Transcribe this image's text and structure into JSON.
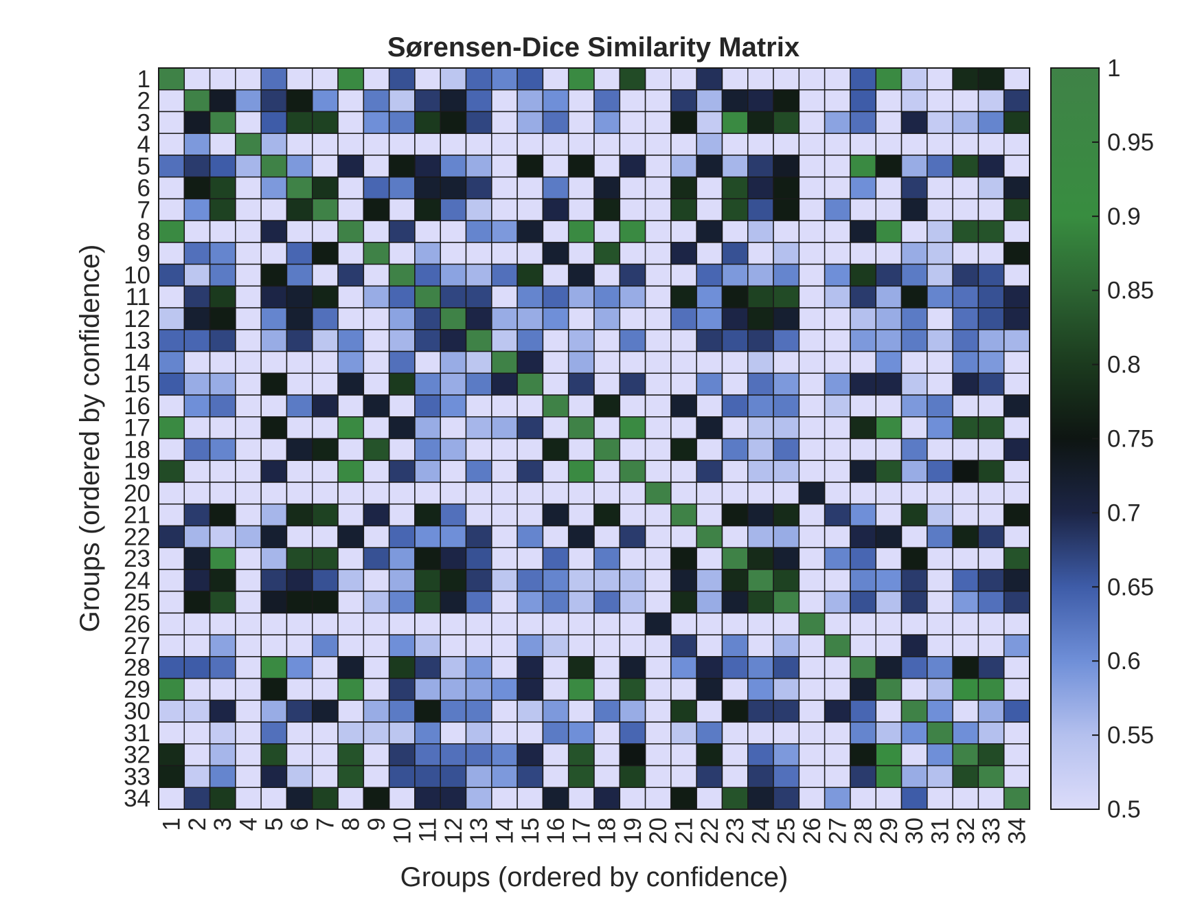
{
  "chart_data": {
    "type": "heatmap",
    "title": "Sørensen-Dice Similarity Matrix",
    "xlabel": "Groups (ordered by confidence)",
    "ylabel": "Groups (ordered by confidence)",
    "x_categories": [
      "1",
      "2",
      "3",
      "4",
      "5",
      "6",
      "7",
      "8",
      "9",
      "10",
      "11",
      "12",
      "13",
      "14",
      "15",
      "16",
      "17",
      "18",
      "19",
      "20",
      "21",
      "22",
      "23",
      "24",
      "25",
      "26",
      "27",
      "28",
      "29",
      "30",
      "31",
      "32",
      "33",
      "34"
    ],
    "y_categories": [
      "1",
      "2",
      "3",
      "4",
      "5",
      "6",
      "7",
      "8",
      "9",
      "10",
      "11",
      "12",
      "13",
      "14",
      "15",
      "16",
      "17",
      "18",
      "19",
      "20",
      "21",
      "22",
      "23",
      "24",
      "25",
      "26",
      "27",
      "28",
      "29",
      "30",
      "31",
      "32",
      "33",
      "34"
    ],
    "color_range": [
      0.5,
      1
    ],
    "colorbar_ticks": [
      "0.5",
      "0.55",
      "0.6",
      "0.65",
      "0.7",
      "0.75",
      "0.8",
      "0.85",
      "0.9",
      "0.95",
      "1"
    ],
    "colormap": [
      [
        0.5,
        "#dcdcfa"
      ],
      [
        0.55,
        "#b4c0ee"
      ],
      [
        0.6,
        "#6f8fd8"
      ],
      [
        0.65,
        "#3e5ca8"
      ],
      [
        0.7,
        "#1c2546"
      ],
      [
        0.75,
        "#0e1512"
      ],
      [
        0.8,
        "#1b3a1e"
      ],
      [
        0.85,
        "#2c6432"
      ],
      [
        0.9,
        "#388d40"
      ],
      [
        1.0,
        "#3f8247"
      ]
    ],
    "grid_color": "#1a1a1a",
    "values": [
      [
        1.0,
        0.5,
        0.5,
        0.5,
        0.63,
        0.5,
        0.5,
        0.93,
        0.5,
        0.66,
        0.5,
        0.54,
        0.64,
        0.61,
        0.65,
        0.5,
        0.93,
        0.5,
        0.82,
        0.5,
        0.5,
        0.69,
        0.5,
        0.5,
        0.5,
        0.5,
        0.5,
        0.65,
        0.93,
        0.53,
        0.5,
        0.78,
        0.77,
        0.5
      ],
      [
        0.5,
        1.0,
        0.73,
        0.59,
        0.68,
        0.76,
        0.6,
        0.5,
        0.62,
        0.54,
        0.68,
        0.72,
        0.64,
        0.5,
        0.57,
        0.6,
        0.5,
        0.63,
        0.5,
        0.5,
        0.68,
        0.56,
        0.72,
        0.7,
        0.76,
        0.5,
        0.5,
        0.65,
        0.5,
        0.53,
        0.5,
        0.5,
        0.53,
        0.68
      ],
      [
        0.5,
        0.73,
        1.0,
        0.5,
        0.65,
        0.81,
        0.81,
        0.5,
        0.6,
        0.62,
        0.8,
        0.76,
        0.67,
        0.5,
        0.57,
        0.63,
        0.5,
        0.59,
        0.5,
        0.5,
        0.76,
        0.53,
        0.93,
        0.77,
        0.82,
        0.5,
        0.58,
        0.63,
        0.5,
        0.7,
        0.53,
        0.56,
        0.61,
        0.8
      ],
      [
        0.5,
        0.59,
        0.5,
        1.0,
        0.56,
        0.5,
        0.5,
        0.5,
        0.5,
        0.5,
        0.5,
        0.5,
        0.5,
        0.5,
        0.5,
        0.5,
        0.5,
        0.5,
        0.5,
        0.5,
        0.5,
        0.56,
        0.5,
        0.5,
        0.5,
        0.5,
        0.5,
        0.5,
        0.5,
        0.5,
        0.5,
        0.5,
        0.5,
        0.5
      ],
      [
        0.63,
        0.68,
        0.65,
        0.56,
        1.0,
        0.59,
        0.5,
        0.7,
        0.5,
        0.76,
        0.7,
        0.61,
        0.57,
        0.5,
        0.76,
        0.5,
        0.76,
        0.5,
        0.7,
        0.5,
        0.56,
        0.72,
        0.56,
        0.68,
        0.73,
        0.5,
        0.5,
        0.93,
        0.76,
        0.57,
        0.63,
        0.82,
        0.7,
        0.5
      ],
      [
        0.5,
        0.76,
        0.81,
        0.5,
        0.59,
        1.0,
        0.79,
        0.5,
        0.64,
        0.62,
        0.72,
        0.72,
        0.68,
        0.5,
        0.5,
        0.62,
        0.5,
        0.72,
        0.5,
        0.5,
        0.78,
        0.5,
        0.82,
        0.7,
        0.76,
        0.5,
        0.5,
        0.6,
        0.5,
        0.68,
        0.5,
        0.5,
        0.54,
        0.72
      ],
      [
        0.5,
        0.6,
        0.81,
        0.5,
        0.5,
        0.79,
        1.0,
        0.5,
        0.76,
        0.5,
        0.77,
        0.63,
        0.54,
        0.5,
        0.5,
        0.7,
        0.5,
        0.77,
        0.5,
        0.5,
        0.81,
        0.5,
        0.82,
        0.66,
        0.76,
        0.5,
        0.61,
        0.5,
        0.5,
        0.72,
        0.5,
        0.5,
        0.5,
        0.81
      ],
      [
        0.93,
        0.5,
        0.5,
        0.5,
        0.7,
        0.5,
        0.5,
        1.0,
        0.5,
        0.68,
        0.5,
        0.5,
        0.61,
        0.59,
        0.72,
        0.5,
        0.93,
        0.5,
        0.93,
        0.5,
        0.5,
        0.72,
        0.5,
        0.55,
        0.5,
        0.5,
        0.5,
        0.72,
        0.93,
        0.5,
        0.54,
        0.83,
        0.83,
        0.5
      ],
      [
        0.5,
        0.63,
        0.61,
        0.5,
        0.5,
        0.64,
        0.76,
        0.5,
        1.0,
        0.5,
        0.57,
        0.5,
        0.5,
        0.5,
        0.5,
        0.72,
        0.5,
        0.83,
        0.5,
        0.5,
        0.7,
        0.5,
        0.66,
        0.5,
        0.55,
        0.5,
        0.5,
        0.5,
        0.5,
        0.57,
        0.54,
        0.5,
        0.5,
        0.76
      ],
      [
        0.66,
        0.54,
        0.62,
        0.5,
        0.76,
        0.62,
        0.5,
        0.68,
        0.5,
        1.0,
        0.64,
        0.58,
        0.56,
        0.63,
        0.8,
        0.5,
        0.72,
        0.5,
        0.68,
        0.5,
        0.5,
        0.64,
        0.59,
        0.57,
        0.61,
        0.5,
        0.6,
        0.8,
        0.68,
        0.62,
        0.54,
        0.68,
        0.66,
        0.5
      ],
      [
        0.5,
        0.68,
        0.8,
        0.5,
        0.7,
        0.72,
        0.77,
        0.5,
        0.57,
        0.64,
        1.0,
        0.67,
        0.67,
        0.5,
        0.61,
        0.64,
        0.57,
        0.61,
        0.57,
        0.5,
        0.77,
        0.6,
        0.76,
        0.81,
        0.82,
        0.5,
        0.55,
        0.68,
        0.57,
        0.76,
        0.61,
        0.63,
        0.66,
        0.7
      ],
      [
        0.54,
        0.72,
        0.76,
        0.5,
        0.61,
        0.72,
        0.63,
        0.5,
        0.5,
        0.58,
        0.67,
        1.0,
        0.7,
        0.57,
        0.57,
        0.6,
        0.5,
        0.57,
        0.5,
        0.5,
        0.63,
        0.6,
        0.7,
        0.77,
        0.72,
        0.5,
        0.5,
        0.55,
        0.57,
        0.62,
        0.5,
        0.63,
        0.66,
        0.7
      ],
      [
        0.64,
        0.64,
        0.67,
        0.5,
        0.57,
        0.68,
        0.54,
        0.61,
        0.5,
        0.56,
        0.67,
        0.7,
        1.0,
        0.54,
        0.62,
        0.5,
        0.56,
        0.5,
        0.62,
        0.5,
        0.5,
        0.68,
        0.66,
        0.68,
        0.63,
        0.5,
        0.5,
        0.59,
        0.58,
        0.62,
        0.55,
        0.63,
        0.57,
        0.56
      ],
      [
        0.61,
        0.5,
        0.5,
        0.5,
        0.5,
        0.5,
        0.5,
        0.59,
        0.5,
        0.63,
        0.5,
        0.57,
        0.54,
        1.0,
        0.7,
        0.5,
        0.57,
        0.5,
        0.5,
        0.5,
        0.5,
        0.5,
        0.5,
        0.54,
        0.5,
        0.5,
        0.5,
        0.5,
        0.6,
        0.5,
        0.5,
        0.61,
        0.59,
        0.5
      ],
      [
        0.65,
        0.57,
        0.57,
        0.5,
        0.76,
        0.5,
        0.5,
        0.72,
        0.5,
        0.8,
        0.61,
        0.57,
        0.62,
        0.7,
        1.0,
        0.5,
        0.68,
        0.5,
        0.68,
        0.5,
        0.5,
        0.61,
        0.5,
        0.63,
        0.59,
        0.5,
        0.59,
        0.7,
        0.7,
        0.54,
        0.5,
        0.7,
        0.67,
        0.5
      ],
      [
        0.5,
        0.6,
        0.63,
        0.5,
        0.5,
        0.62,
        0.7,
        0.5,
        0.72,
        0.5,
        0.64,
        0.6,
        0.5,
        0.5,
        0.5,
        1.0,
        0.5,
        0.77,
        0.5,
        0.5,
        0.72,
        0.5,
        0.64,
        0.61,
        0.62,
        0.5,
        0.54,
        0.5,
        0.5,
        0.59,
        0.62,
        0.5,
        0.5,
        0.72
      ],
      [
        0.93,
        0.5,
        0.5,
        0.5,
        0.76,
        0.5,
        0.5,
        0.93,
        0.5,
        0.72,
        0.57,
        0.5,
        0.56,
        0.57,
        0.68,
        0.5,
        1.0,
        0.5,
        0.93,
        0.5,
        0.5,
        0.72,
        0.5,
        0.54,
        0.55,
        0.5,
        0.5,
        0.78,
        0.93,
        0.5,
        0.6,
        0.83,
        0.83,
        0.5
      ],
      [
        0.5,
        0.63,
        0.61,
        0.5,
        0.5,
        0.72,
        0.77,
        0.5,
        0.83,
        0.5,
        0.61,
        0.57,
        0.5,
        0.5,
        0.5,
        0.77,
        0.5,
        1.0,
        0.5,
        0.5,
        0.77,
        0.5,
        0.62,
        0.55,
        0.63,
        0.5,
        0.5,
        0.5,
        0.5,
        0.62,
        0.5,
        0.5,
        0.5,
        0.7
      ],
      [
        0.82,
        0.5,
        0.5,
        0.5,
        0.7,
        0.5,
        0.5,
        0.93,
        0.5,
        0.68,
        0.57,
        0.5,
        0.62,
        0.5,
        0.68,
        0.5,
        0.93,
        0.5,
        1.0,
        0.5,
        0.5,
        0.68,
        0.5,
        0.55,
        0.55,
        0.5,
        0.5,
        0.72,
        0.83,
        0.57,
        0.64,
        0.75,
        0.81,
        0.5
      ],
      [
        0.5,
        0.5,
        0.5,
        0.5,
        0.5,
        0.5,
        0.5,
        0.5,
        0.5,
        0.5,
        0.5,
        0.5,
        0.5,
        0.5,
        0.5,
        0.5,
        0.5,
        0.5,
        0.5,
        1.0,
        0.5,
        0.5,
        0.5,
        0.5,
        0.5,
        0.72,
        0.5,
        0.5,
        0.5,
        0.5,
        0.5,
        0.5,
        0.5,
        0.5
      ],
      [
        0.5,
        0.68,
        0.76,
        0.5,
        0.56,
        0.78,
        0.81,
        0.5,
        0.7,
        0.5,
        0.77,
        0.63,
        0.5,
        0.5,
        0.5,
        0.72,
        0.5,
        0.77,
        0.5,
        0.5,
        1.0,
        0.5,
        0.76,
        0.72,
        0.78,
        0.5,
        0.68,
        0.6,
        0.5,
        0.8,
        0.54,
        0.5,
        0.5,
        0.76
      ],
      [
        0.69,
        0.56,
        0.53,
        0.56,
        0.72,
        0.5,
        0.5,
        0.72,
        0.5,
        0.64,
        0.6,
        0.6,
        0.68,
        0.5,
        0.61,
        0.5,
        0.72,
        0.5,
        0.68,
        0.5,
        0.5,
        1.0,
        0.5,
        0.56,
        0.57,
        0.5,
        0.5,
        0.7,
        0.72,
        0.5,
        0.62,
        0.77,
        0.68,
        0.5
      ],
      [
        0.5,
        0.72,
        0.93,
        0.5,
        0.56,
        0.82,
        0.82,
        0.5,
        0.66,
        0.59,
        0.76,
        0.7,
        0.66,
        0.5,
        0.5,
        0.64,
        0.5,
        0.62,
        0.5,
        0.5,
        0.76,
        0.5,
        1.0,
        0.78,
        0.72,
        0.5,
        0.61,
        0.64,
        0.5,
        0.76,
        0.5,
        0.5,
        0.5,
        0.83
      ],
      [
        0.5,
        0.7,
        0.77,
        0.5,
        0.68,
        0.7,
        0.66,
        0.55,
        0.5,
        0.57,
        0.81,
        0.77,
        0.68,
        0.54,
        0.63,
        0.61,
        0.54,
        0.55,
        0.55,
        0.5,
        0.72,
        0.56,
        0.78,
        1.0,
        0.81,
        0.5,
        0.5,
        0.61,
        0.6,
        0.68,
        0.5,
        0.64,
        0.68,
        0.72
      ],
      [
        0.5,
        0.76,
        0.82,
        0.5,
        0.73,
        0.76,
        0.76,
        0.5,
        0.55,
        0.61,
        0.82,
        0.72,
        0.63,
        0.5,
        0.59,
        0.62,
        0.55,
        0.63,
        0.55,
        0.5,
        0.78,
        0.57,
        0.72,
        0.81,
        1.0,
        0.5,
        0.56,
        0.66,
        0.55,
        0.68,
        0.5,
        0.59,
        0.63,
        0.68
      ],
      [
        0.5,
        0.5,
        0.5,
        0.5,
        0.5,
        0.5,
        0.5,
        0.5,
        0.5,
        0.5,
        0.5,
        0.5,
        0.5,
        0.5,
        0.5,
        0.5,
        0.5,
        0.5,
        0.5,
        0.72,
        0.5,
        0.5,
        0.5,
        0.5,
        0.5,
        1.0,
        0.5,
        0.5,
        0.5,
        0.5,
        0.5,
        0.5,
        0.5,
        0.5
      ],
      [
        0.5,
        0.5,
        0.58,
        0.5,
        0.5,
        0.5,
        0.61,
        0.5,
        0.5,
        0.6,
        0.55,
        0.5,
        0.5,
        0.5,
        0.59,
        0.54,
        0.5,
        0.5,
        0.5,
        0.5,
        0.68,
        0.5,
        0.61,
        0.5,
        0.56,
        0.5,
        1.0,
        0.5,
        0.5,
        0.7,
        0.5,
        0.5,
        0.5,
        0.59
      ],
      [
        0.65,
        0.65,
        0.63,
        0.5,
        0.93,
        0.6,
        0.5,
        0.72,
        0.5,
        0.8,
        0.68,
        0.55,
        0.59,
        0.5,
        0.7,
        0.5,
        0.78,
        0.5,
        0.72,
        0.5,
        0.6,
        0.7,
        0.64,
        0.61,
        0.66,
        0.5,
        0.5,
        1.0,
        0.72,
        0.64,
        0.61,
        0.76,
        0.68,
        0.5
      ],
      [
        0.93,
        0.5,
        0.5,
        0.5,
        0.76,
        0.5,
        0.5,
        0.93,
        0.5,
        0.68,
        0.57,
        0.57,
        0.58,
        0.6,
        0.7,
        0.5,
        0.93,
        0.5,
        0.83,
        0.5,
        0.5,
        0.72,
        0.5,
        0.6,
        0.55,
        0.5,
        0.5,
        0.72,
        1.0,
        0.5,
        0.55,
        0.9,
        0.93,
        0.5
      ],
      [
        0.53,
        0.53,
        0.7,
        0.5,
        0.57,
        0.68,
        0.72,
        0.5,
        0.57,
        0.62,
        0.76,
        0.62,
        0.62,
        0.5,
        0.54,
        0.59,
        0.5,
        0.62,
        0.57,
        0.5,
        0.8,
        0.5,
        0.76,
        0.68,
        0.68,
        0.5,
        0.7,
        0.64,
        0.5,
        1.0,
        0.6,
        0.5,
        0.57,
        0.65
      ],
      [
        0.5,
        0.5,
        0.53,
        0.5,
        0.63,
        0.5,
        0.5,
        0.54,
        0.54,
        0.54,
        0.61,
        0.5,
        0.55,
        0.5,
        0.5,
        0.62,
        0.6,
        0.5,
        0.64,
        0.5,
        0.54,
        0.62,
        0.5,
        0.5,
        0.5,
        0.5,
        0.5,
        0.61,
        0.55,
        0.6,
        1.0,
        0.6,
        0.55,
        0.5
      ],
      [
        0.78,
        0.5,
        0.56,
        0.5,
        0.82,
        0.5,
        0.5,
        0.83,
        0.5,
        0.68,
        0.63,
        0.63,
        0.63,
        0.61,
        0.7,
        0.5,
        0.83,
        0.5,
        0.75,
        0.5,
        0.5,
        0.77,
        0.5,
        0.64,
        0.59,
        0.5,
        0.5,
        0.76,
        0.9,
        0.5,
        0.6,
        1.0,
        0.82,
        0.5
      ],
      [
        0.77,
        0.53,
        0.61,
        0.5,
        0.7,
        0.54,
        0.5,
        0.83,
        0.5,
        0.66,
        0.66,
        0.66,
        0.57,
        0.59,
        0.67,
        0.5,
        0.83,
        0.5,
        0.81,
        0.5,
        0.5,
        0.68,
        0.5,
        0.68,
        0.63,
        0.5,
        0.5,
        0.68,
        0.93,
        0.57,
        0.55,
        0.82,
        1.0,
        0.5
      ],
      [
        0.5,
        0.68,
        0.8,
        0.5,
        0.5,
        0.72,
        0.81,
        0.5,
        0.76,
        0.5,
        0.7,
        0.7,
        0.56,
        0.5,
        0.5,
        0.72,
        0.5,
        0.7,
        0.5,
        0.5,
        0.76,
        0.5,
        0.83,
        0.72,
        0.68,
        0.5,
        0.59,
        0.5,
        0.5,
        0.65,
        0.5,
        0.5,
        0.5,
        1.0
      ]
    ]
  }
}
